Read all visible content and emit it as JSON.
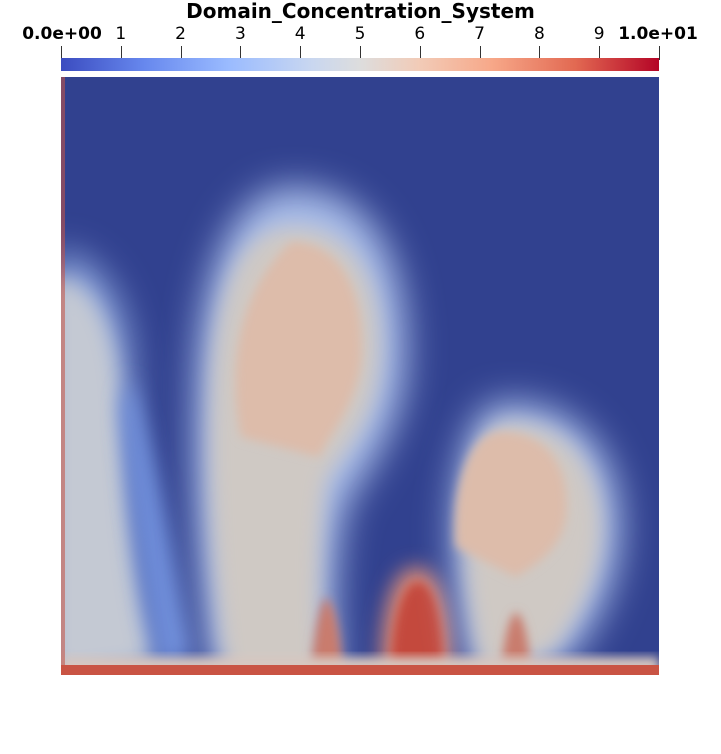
{
  "chart_data": {
    "type": "heatmap",
    "title": "Domain_Concentration_System",
    "xlabel": "",
    "ylabel": "",
    "colorbar": {
      "min": 0,
      "max": 10,
      "min_label": "0.0e+00",
      "max_label": "1.0e+01",
      "ticks": [
        "1",
        "2",
        "3",
        "4",
        "5",
        "6",
        "7",
        "8",
        "9"
      ],
      "colormap": "cool-to-warm",
      "colors": {
        "low": "#3b4cc0",
        "mid": "#dddddd",
        "high": "#b40426"
      },
      "orientation": "horizontal",
      "placement": "top"
    },
    "field": {
      "background_value": 0,
      "background_color": "#31418f",
      "description_values": {
        "left_plume_value": 5,
        "large_plume_value": 6,
        "central_stem_value": 9,
        "right_plume_value": 6.5,
        "bottom_boundary_value": 8
      }
    }
  }
}
